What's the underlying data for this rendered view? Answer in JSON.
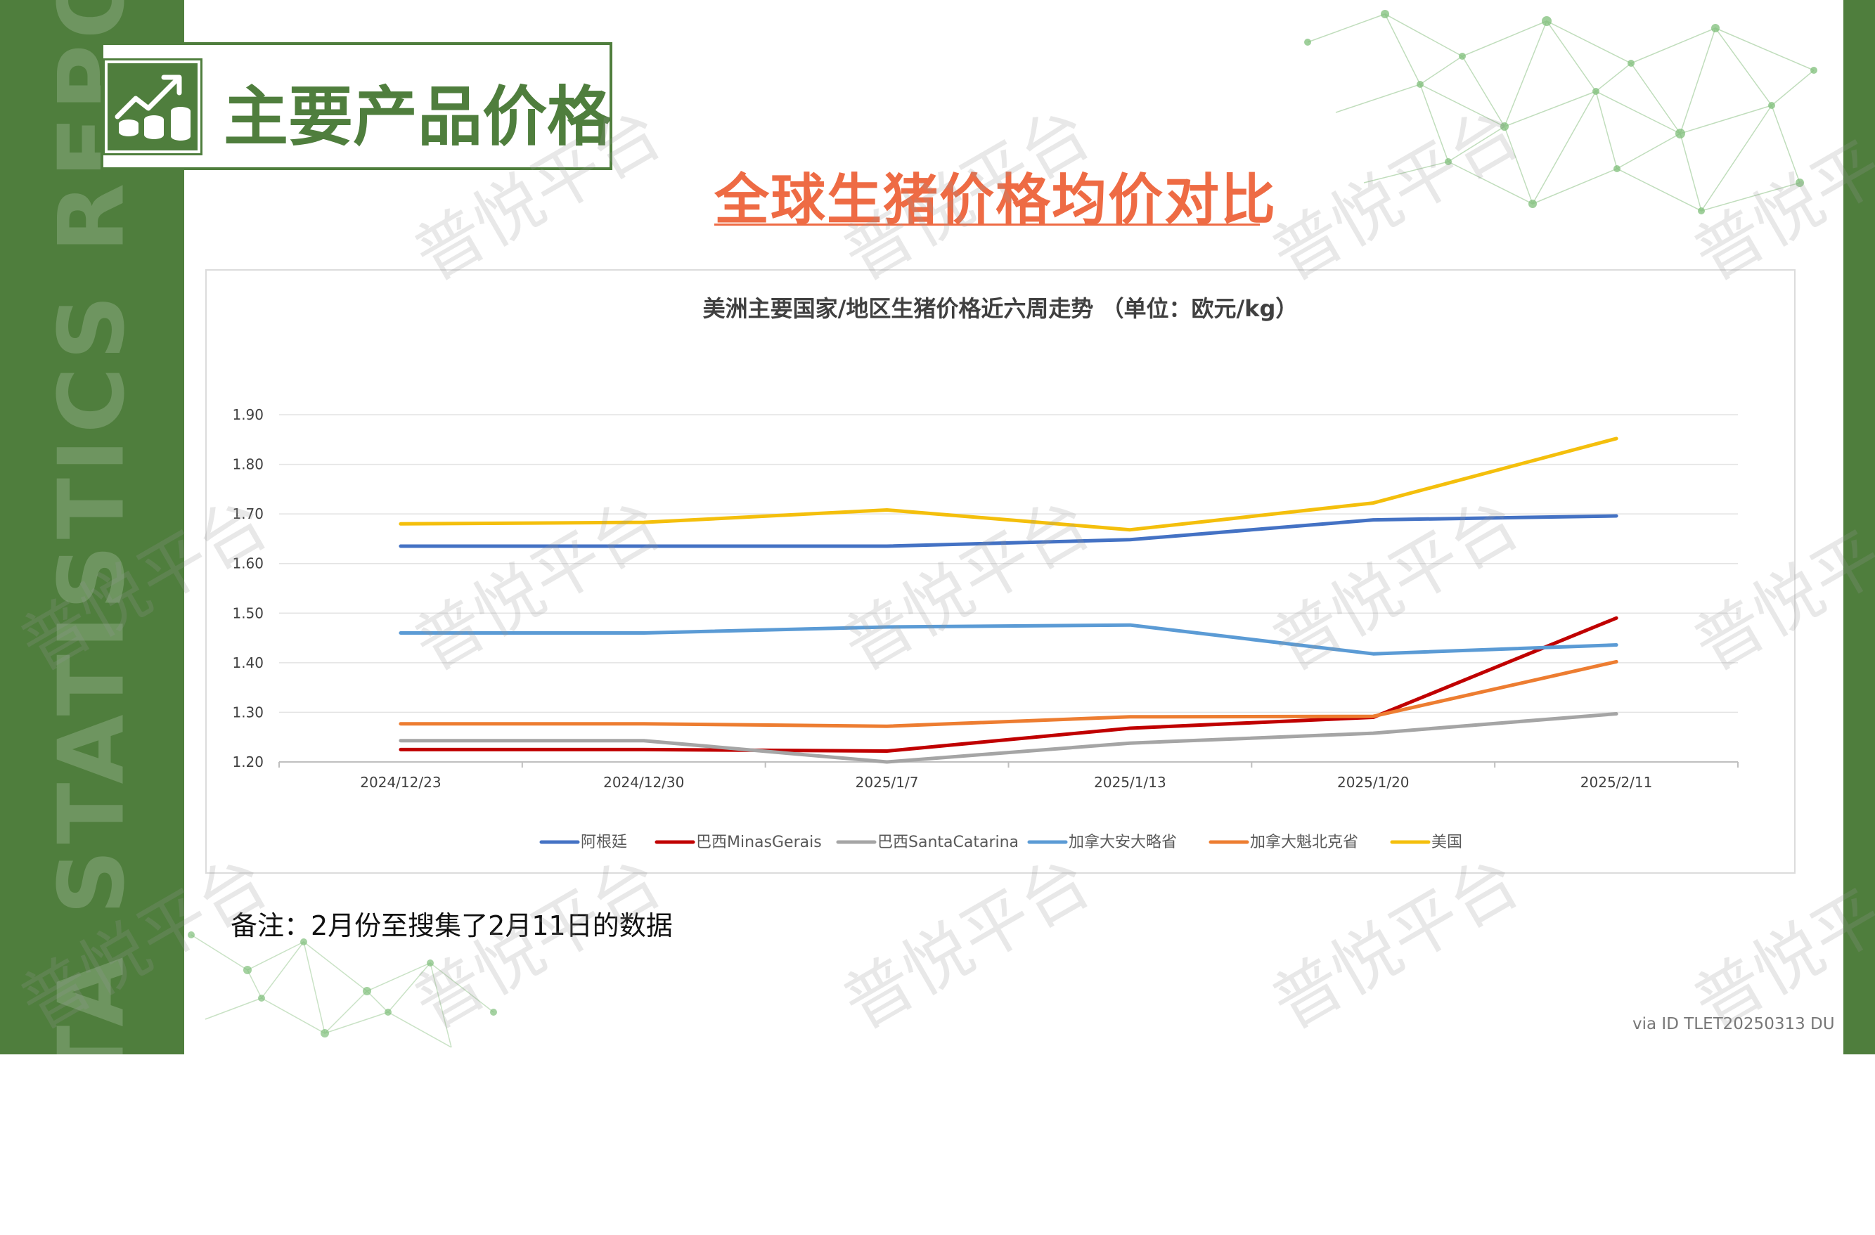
{
  "sidebar": {
    "vertical_text": "DATA STATISTICS REPORT"
  },
  "header": {
    "title": "主要产品价格",
    "icon": "chart-coins-icon",
    "subtitle": "全球生猪价格均价对比"
  },
  "watermark": "普悦平台",
  "note": "备注：2月份至搜集了2月11日的数据",
  "footer": "via ID TLET20250313 DU",
  "colors": {
    "brand_green": "#4f7e3d",
    "accent_orange": "#ee6b44"
  },
  "chart_data": {
    "type": "line",
    "title": "美洲主要国家/地区生猪价格近六周走势 （单位：欧元/kg）",
    "xlabel": "",
    "ylabel": "",
    "categories": [
      "2024/12/23",
      "2024/12/30",
      "2025/1/7",
      "2025/1/13",
      "2025/1/20",
      "2025/2/11"
    ],
    "ylim": [
      1.2,
      1.9
    ],
    "yticks": [
      "1.20",
      "1.30",
      "1.40",
      "1.50",
      "1.60",
      "1.70",
      "1.80",
      "1.90"
    ],
    "grid": true,
    "legend_position": "bottom",
    "series": [
      {
        "name": "阿根廷",
        "color": "#4472c4",
        "values": [
          1.635,
          1.635,
          1.635,
          1.648,
          1.688,
          1.696
        ]
      },
      {
        "name": "巴西MinasGerais",
        "color": "#c00000",
        "values": [
          1.225,
          1.225,
          1.222,
          1.268,
          1.29,
          1.49
        ]
      },
      {
        "name": "巴西SantaCatarina",
        "color": "#a5a5a5",
        "values": [
          1.243,
          1.243,
          1.2,
          1.238,
          1.258,
          1.297
        ]
      },
      {
        "name": "加拿大安大略省",
        "color": "#5b9bd5",
        "values": [
          1.46,
          1.46,
          1.472,
          1.476,
          1.418,
          1.436
        ]
      },
      {
        "name": "加拿大魁北克省",
        "color": "#ed7d31",
        "values": [
          1.277,
          1.277,
          1.272,
          1.291,
          1.292,
          1.402
        ]
      },
      {
        "name": "美国",
        "color": "#f4bf0c",
        "values": [
          1.68,
          1.683,
          1.708,
          1.668,
          1.722,
          1.852
        ]
      }
    ]
  }
}
